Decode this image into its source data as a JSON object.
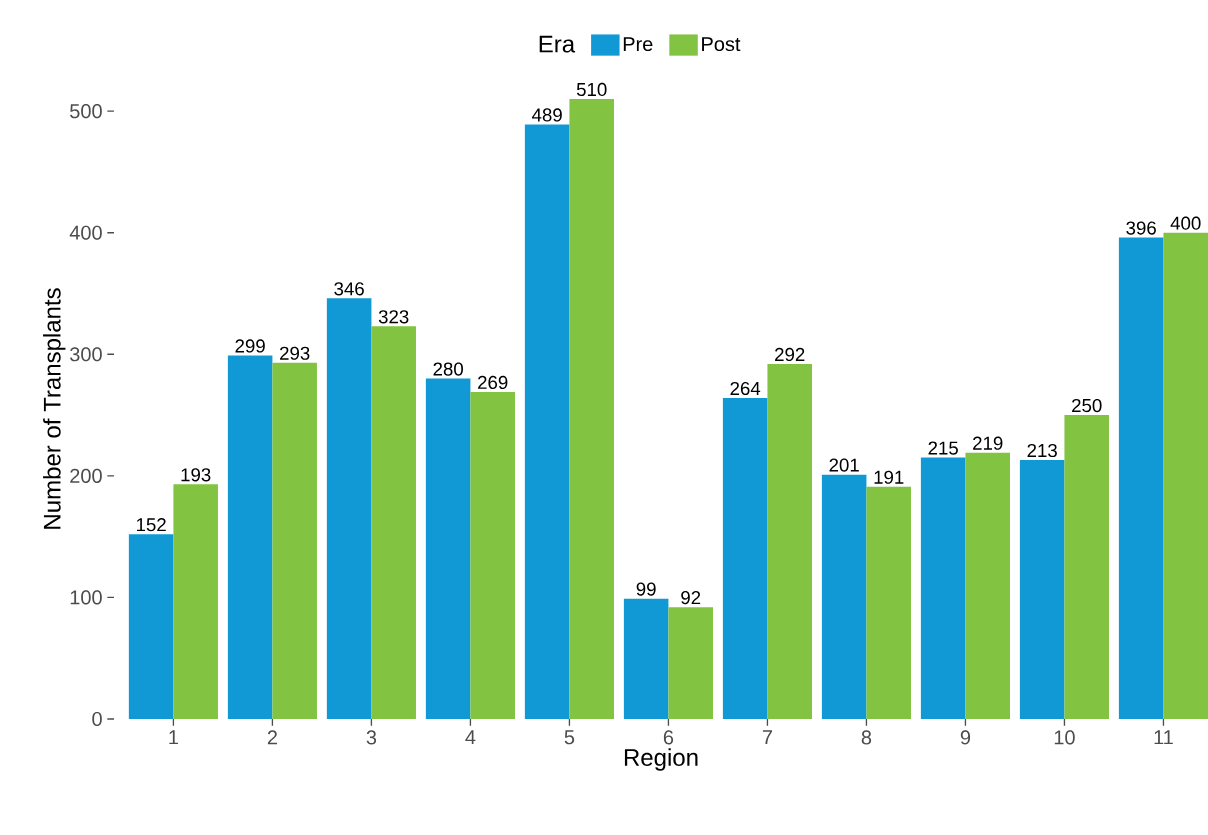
{
  "chart_data": {
    "type": "bar",
    "xlabel": "Region",
    "ylabel": "Number of Transplants",
    "legend_title": "Era",
    "categories": [
      "1",
      "2",
      "3",
      "4",
      "5",
      "6",
      "7",
      "8",
      "9",
      "10",
      "11"
    ],
    "series": [
      {
        "name": "Pre",
        "color": "#1199d6",
        "values": [
          152,
          299,
          346,
          280,
          489,
          99,
          264,
          201,
          215,
          213,
          396
        ]
      },
      {
        "name": "Post",
        "color": "#82c341",
        "values": [
          193,
          293,
          323,
          269,
          510,
          92,
          292,
          191,
          219,
          250,
          400
        ]
      }
    ],
    "ylim": [
      0,
      510
    ],
    "yticks": [
      0,
      100,
      200,
      300,
      400,
      500
    ],
    "grid": false,
    "legend": "top",
    "data_labels": true
  }
}
